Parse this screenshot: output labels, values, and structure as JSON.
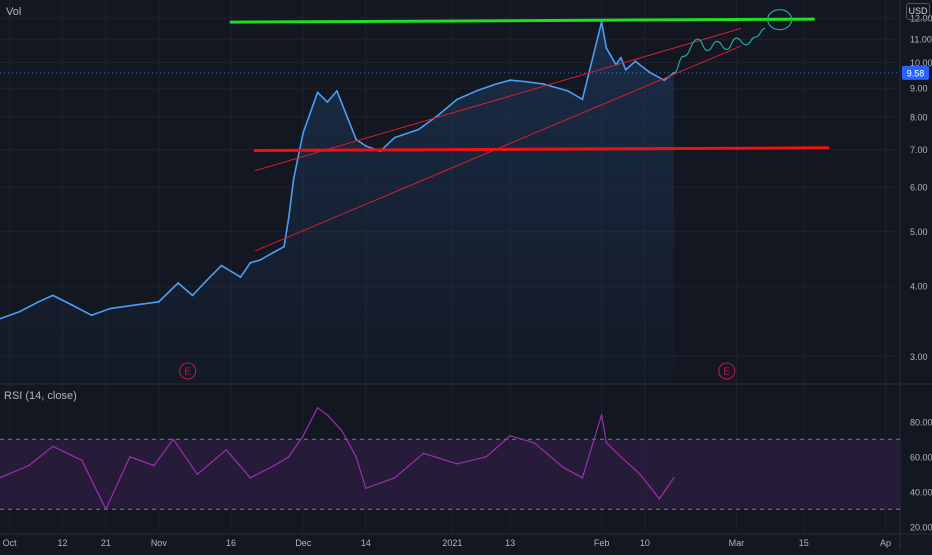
{
  "colors": {
    "background": "#131722",
    "price_line": "#4a9ff5",
    "price_fill": "#1f3f66",
    "rsi_line": "#9b2fae",
    "rsi_band": "#2a1d3d",
    "resistance": "#22dd22",
    "support": "#ee1111",
    "channel": "#d41f2b",
    "projection": "#26a69a",
    "earnings": "#c2185b",
    "axis_text": "#b2b5be",
    "price_badge": "#2962ff"
  },
  "header": {
    "top_left_label": "Vol",
    "currency": "USD"
  },
  "price_badge": "9.58",
  "earnings_marker": "E",
  "rsi_panel": {
    "label": "RSI (14, close)",
    "upper_band": 70,
    "lower_band": 30
  },
  "chart_data": {
    "type": "line",
    "price_axis": {
      "ticks": [
        "12.00",
        "11.00",
        "10.00",
        "9.00",
        "8.00",
        "7.00",
        "6.00",
        "5.00",
        "4.00",
        "3.00"
      ],
      "min": 2.7,
      "max": 12.5,
      "scale": "log"
    },
    "rsi_axis": {
      "ticks": [
        "80.00",
        "60.00",
        "40.00",
        "20.00"
      ],
      "min": 17,
      "max": 97
    },
    "x_axis": {
      "labels": [
        "Oct",
        "12",
        "21",
        "Nov",
        "16",
        "Dec",
        "14",
        "2021",
        "13",
        "Feb",
        "10",
        "Mar",
        "15",
        "Ap"
      ],
      "start": "2020-09-29",
      "end": "2021-04-04"
    },
    "price": {
      "dates": [
        "2020-09-29",
        "2020-10-03",
        "2020-10-07",
        "2020-10-10",
        "2020-10-14",
        "2020-10-18",
        "2020-10-22",
        "2020-10-27",
        "2020-11-01",
        "2020-11-05",
        "2020-11-08",
        "2020-11-11",
        "2020-11-14",
        "2020-11-18",
        "2020-11-20",
        "2020-11-22",
        "2020-11-25",
        "2020-11-27",
        "2020-11-28",
        "2020-11-29",
        "2020-12-01",
        "2020-12-04",
        "2020-12-06",
        "2020-12-08",
        "2020-12-12",
        "2020-12-14",
        "2020-12-17",
        "2020-12-20",
        "2020-12-25",
        "2020-12-29",
        "2021-01-02",
        "2021-01-06",
        "2021-01-10",
        "2021-01-13",
        "2021-01-16",
        "2021-01-20",
        "2021-01-25",
        "2021-01-28",
        "2021-02-01",
        "2021-02-02",
        "2021-02-03",
        "2021-02-04",
        "2021-02-05",
        "2021-02-06",
        "2021-02-08",
        "2021-02-11",
        "2021-02-14",
        "2021-02-16"
      ],
      "values": [
        3.5,
        3.6,
        3.75,
        3.85,
        3.7,
        3.55,
        3.65,
        3.7,
        3.75,
        4.05,
        3.85,
        4.1,
        4.35,
        4.15,
        4.4,
        4.45,
        4.6,
        4.7,
        5.3,
        6.2,
        7.5,
        8.85,
        8.5,
        8.9,
        7.3,
        7.1,
        6.95,
        7.35,
        7.6,
        8.05,
        8.6,
        8.9,
        9.15,
        9.3,
        9.25,
        9.15,
        8.9,
        8.6,
        11.8,
        10.6,
        10.25,
        9.9,
        10.2,
        9.7,
        10.05,
        9.6,
        9.3,
        9.58
      ]
    },
    "rsi": {
      "dates": [
        "2020-09-29",
        "2020-10-05",
        "2020-10-10",
        "2020-10-16",
        "2020-10-21",
        "2020-10-26",
        "2020-10-31",
        "2020-11-04",
        "2020-11-09",
        "2020-11-15",
        "2020-11-20",
        "2020-11-25",
        "2020-11-28",
        "2020-12-01",
        "2020-12-04",
        "2020-12-06",
        "2020-12-09",
        "2020-12-12",
        "2020-12-14",
        "2020-12-20",
        "2020-12-26",
        "2021-01-02",
        "2021-01-08",
        "2021-01-13",
        "2021-01-18",
        "2021-01-24",
        "2021-01-28",
        "2021-02-01",
        "2021-02-02",
        "2021-02-05",
        "2021-02-09",
        "2021-02-13",
        "2021-02-16"
      ],
      "values": [
        48,
        55,
        66,
        58,
        30,
        60,
        55,
        70,
        50,
        64,
        48,
        55,
        60,
        72,
        88,
        84,
        75,
        60,
        42,
        48,
        62,
        56,
        60,
        72,
        68,
        54,
        48,
        84,
        68,
        60,
        50,
        36,
        48
      ]
    },
    "annotations": {
      "resistance": {
        "value": 11.87,
        "start": "2020-11-16",
        "end": "2021-03-17"
      },
      "support": {
        "start": "2020-11-21",
        "end": "2021-03-20",
        "y_start": 6.97,
        "y_end": 7.05
      },
      "channel_upper": {
        "start": "2020-11-21",
        "end": "2021-03-02",
        "y_start": 6.42,
        "y_end": 11.5
      },
      "channel_lower": {
        "start": "2020-11-21",
        "end": "2021-03-02",
        "y_start": 4.62,
        "y_end": 10.7
      },
      "projection": {
        "dates": [
          "2021-02-16",
          "2021-02-18",
          "2021-02-21",
          "2021-02-23",
          "2021-02-25",
          "2021-02-27",
          "2021-03-01",
          "2021-03-03",
          "2021-03-05",
          "2021-03-07"
        ],
        "values": [
          9.58,
          10.25,
          11.0,
          10.5,
          10.9,
          10.55,
          11.05,
          10.75,
          11.1,
          11.5
        ]
      },
      "earnings_dates": [
        "2020-11-07",
        "2021-02-27"
      ]
    }
  }
}
